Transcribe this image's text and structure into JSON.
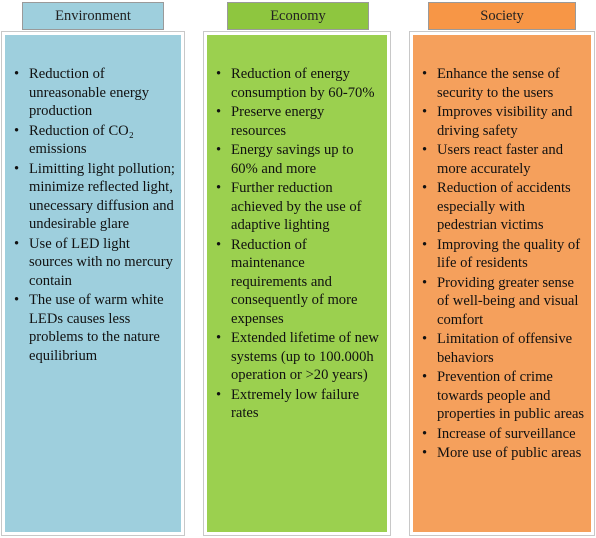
{
  "colors": {
    "environment_header": "#9ecfdd",
    "environment_body": "#9ecfdd",
    "economy_header": "#8ec63f",
    "economy_body": "#9bd04f",
    "society_header": "#f79646",
    "society_body": "#f5a05c"
  },
  "columns": [
    {
      "header": "Environment",
      "items": [
        "Reduction of unreasonable energy production",
        "Reduction of CO₂ emissions",
        "Limitting light pollution; minimize reflected light, unecessary diffusion and undesirable glare",
        "Use of LED light sources with no mercury contain",
        "The use of warm white LEDs causes less problems to the nature equilibrium"
      ]
    },
    {
      "header": "Economy",
      "items": [
        "Reduction of energy consumption by 60-70%",
        "Preserve energy resources",
        "Energy savings up to 60% and more",
        "Further reduction achieved by the use of adaptive lighting",
        "Reduction of maintenance requirements and consequently of more expenses",
        "Extended lifetime of new systems (up to 100.000h operation or >20 years)",
        "Extremely low failure rates"
      ]
    },
    {
      "header": "Society",
      "items": [
        "Enhance the sense of security to the users",
        "Improves visibility  and driving safety",
        "Users react faster and more accurately",
        "Reduction of accidents especially with pedestrian victims",
        "Improving the quality of life of residents",
        "Providing greater sense of well-being and visual comfort",
        "Limitation of offensive behaviors",
        "Prevention of crime towards people and properties in public areas",
        "Increase of surveillance",
        "More use of public areas"
      ]
    }
  ]
}
